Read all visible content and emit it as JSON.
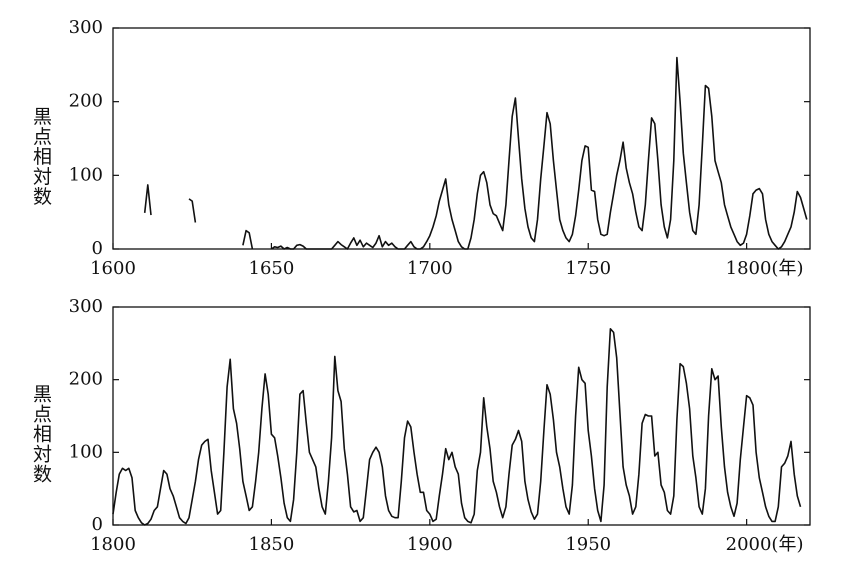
{
  "chart_data": [
    {
      "type": "line",
      "ylabel": "黒点相対数",
      "color": "#111111",
      "grid": false,
      "xlim": [
        1600,
        1820
      ],
      "ylim": [
        0,
        300
      ],
      "xticks": [
        1600,
        1650,
        1700,
        1750,
        {
          "value": 1800,
          "label": "1800(年)"
        }
      ],
      "yticks": [
        0,
        100,
        200,
        300
      ],
      "x": [
        1610,
        1611,
        1612,
        1613,
        1624,
        1625,
        1626,
        1627,
        1641,
        1642,
        1643,
        1644,
        1645,
        1650,
        1651,
        1652,
        1653,
        1654,
        1655,
        1656,
        1657,
        1658,
        1659,
        1660,
        1661,
        1662,
        1663,
        1664,
        1665,
        1666,
        1667,
        1668,
        1669,
        1670,
        1671,
        1672,
        1673,
        1674,
        1675,
        1676,
        1677,
        1678,
        1679,
        1680,
        1681,
        1682,
        1683,
        1684,
        1685,
        1686,
        1687,
        1688,
        1689,
        1690,
        1691,
        1692,
        1693,
        1694,
        1695,
        1696,
        1697,
        1698,
        1699,
        1700,
        1701,
        1702,
        1703,
        1704,
        1705,
        1706,
        1707,
        1708,
        1709,
        1710,
        1711,
        1712,
        1713,
        1714,
        1715,
        1716,
        1717,
        1718,
        1719,
        1720,
        1721,
        1722,
        1723,
        1724,
        1725,
        1726,
        1727,
        1728,
        1729,
        1730,
        1731,
        1732,
        1733,
        1734,
        1735,
        1736,
        1737,
        1738,
        1739,
        1740,
        1741,
        1742,
        1743,
        1744,
        1745,
        1746,
        1747,
        1748,
        1749,
        1750,
        1751,
        1752,
        1753,
        1754,
        1755,
        1756,
        1757,
        1758,
        1759,
        1760,
        1761,
        1762,
        1763,
        1764,
        1765,
        1766,
        1767,
        1768,
        1769,
        1770,
        1771,
        1772,
        1773,
        1774,
        1775,
        1776,
        1777,
        1778,
        1779,
        1780,
        1781,
        1782,
        1783,
        1784,
        1785,
        1786,
        1787,
        1788,
        1789,
        1790,
        1791,
        1792,
        1793,
        1794,
        1795,
        1796,
        1797,
        1798,
        1799,
        1800,
        1801,
        1802,
        1803,
        1804,
        1805,
        1806,
        1807,
        1808,
        1809,
        1810,
        1811,
        1812,
        1813,
        1814,
        1815,
        1816,
        1817,
        1818,
        1819
      ],
      "values": [
        49,
        87,
        46,
        null,
        68,
        65,
        36,
        null,
        5,
        25,
        22,
        0,
        null,
        0,
        3,
        2,
        4,
        0,
        2,
        0,
        0,
        5,
        6,
        4,
        0,
        0,
        0,
        0,
        0,
        0,
        0,
        0,
        0,
        5,
        10,
        6,
        3,
        0,
        8,
        15,
        5,
        12,
        3,
        8,
        5,
        2,
        8,
        18,
        3,
        10,
        5,
        8,
        3,
        0,
        0,
        0,
        5,
        10,
        3,
        0,
        0,
        3,
        10,
        18,
        30,
        45,
        65,
        80,
        95,
        60,
        40,
        25,
        10,
        3,
        0,
        0,
        15,
        40,
        75,
        100,
        105,
        90,
        60,
        48,
        45,
        35,
        25,
        60,
        120,
        180,
        205,
        150,
        95,
        55,
        30,
        15,
        10,
        40,
        95,
        140,
        185,
        170,
        120,
        80,
        40,
        25,
        15,
        10,
        20,
        45,
        80,
        120,
        140,
        138,
        80,
        78,
        40,
        20,
        18,
        20,
        50,
        75,
        100,
        120,
        145,
        110,
        90,
        75,
        50,
        30,
        25,
        60,
        120,
        178,
        170,
        120,
        60,
        30,
        15,
        40,
        120,
        260,
        200,
        130,
        90,
        50,
        25,
        20,
        60,
        140,
        222,
        218,
        180,
        120,
        105,
        90,
        60,
        45,
        30,
        20,
        10,
        5,
        8,
        20,
        45,
        75,
        80,
        82,
        75,
        40,
        20,
        10,
        5,
        0,
        3,
        10,
        20,
        30,
        50,
        78,
        70,
        55,
        40
      ]
    },
    {
      "type": "line",
      "ylabel": "黒点相対数",
      "color": "#111111",
      "grid": false,
      "xlim": [
        1800,
        2020
      ],
      "ylim": [
        0,
        300
      ],
      "xticks": [
        1800,
        1850,
        1900,
        1950,
        {
          "value": 2000,
          "label": "2000(年)"
        }
      ],
      "yticks": [
        0,
        100,
        200,
        300
      ],
      "x": [
        1800,
        1801,
        1802,
        1803,
        1804,
        1805,
        1806,
        1807,
        1808,
        1809,
        1810,
        1811,
        1812,
        1813,
        1814,
        1815,
        1816,
        1817,
        1818,
        1819,
        1820,
        1821,
        1822,
        1823,
        1824,
        1825,
        1826,
        1827,
        1828,
        1829,
        1830,
        1831,
        1832,
        1833,
        1834,
        1835,
        1836,
        1837,
        1838,
        1839,
        1840,
        1841,
        1842,
        1843,
        1844,
        1845,
        1846,
        1847,
        1848,
        1849,
        1850,
        1851,
        1852,
        1853,
        1854,
        1855,
        1856,
        1857,
        1858,
        1859,
        1860,
        1861,
        1862,
        1863,
        1864,
        1865,
        1866,
        1867,
        1868,
        1869,
        1870,
        1871,
        1872,
        1873,
        1874,
        1875,
        1876,
        1877,
        1878,
        1879,
        1880,
        1881,
        1882,
        1883,
        1884,
        1885,
        1886,
        1887,
        1888,
        1889,
        1890,
        1891,
        1892,
        1893,
        1894,
        1895,
        1896,
        1897,
        1898,
        1899,
        1900,
        1901,
        1902,
        1903,
        1904,
        1905,
        1906,
        1907,
        1908,
        1909,
        1910,
        1911,
        1912,
        1913,
        1914,
        1915,
        1916,
        1917,
        1918,
        1919,
        1920,
        1921,
        1922,
        1923,
        1924,
        1925,
        1926,
        1927,
        1928,
        1929,
        1930,
        1931,
        1932,
        1933,
        1934,
        1935,
        1936,
        1937,
        1938,
        1939,
        1940,
        1941,
        1942,
        1943,
        1944,
        1945,
        1946,
        1947,
        1948,
        1949,
        1950,
        1951,
        1952,
        1953,
        1954,
        1955,
        1956,
        1957,
        1958,
        1959,
        1960,
        1961,
        1962,
        1963,
        1964,
        1965,
        1966,
        1967,
        1968,
        1969,
        1970,
        1971,
        1972,
        1973,
        1974,
        1975,
        1976,
        1977,
        1978,
        1979,
        1980,
        1981,
        1982,
        1983,
        1984,
        1985,
        1986,
        1987,
        1988,
        1989,
        1990,
        1991,
        1992,
        1993,
        1994,
        1995,
        1996,
        1997,
        1998,
        1999,
        2000,
        2001,
        2002,
        2003,
        2004,
        2005,
        2006,
        2007,
        2008,
        2009,
        2010,
        2011,
        2012,
        2013,
        2014,
        2015,
        2016,
        2017
      ],
      "values": [
        15,
        45,
        70,
        78,
        75,
        78,
        65,
        20,
        10,
        3,
        0,
        2,
        8,
        20,
        25,
        50,
        75,
        70,
        50,
        40,
        25,
        10,
        5,
        2,
        10,
        35,
        60,
        90,
        110,
        115,
        118,
        75,
        45,
        15,
        20,
        100,
        190,
        228,
        160,
        140,
        105,
        60,
        40,
        20,
        25,
        60,
        100,
        160,
        208,
        180,
        125,
        120,
        95,
        65,
        30,
        10,
        5,
        35,
        100,
        180,
        185,
        140,
        100,
        90,
        80,
        50,
        25,
        15,
        60,
        120,
        232,
        185,
        170,
        105,
        70,
        25,
        18,
        20,
        5,
        10,
        50,
        90,
        100,
        107,
        100,
        80,
        40,
        20,
        12,
        10,
        10,
        60,
        120,
        143,
        135,
        100,
        70,
        45,
        45,
        20,
        15,
        5,
        8,
        40,
        70,
        105,
        90,
        100,
        80,
        70,
        30,
        10,
        5,
        3,
        15,
        75,
        100,
        175,
        135,
        105,
        60,
        45,
        25,
        10,
        25,
        70,
        110,
        118,
        130,
        115,
        60,
        35,
        18,
        8,
        15,
        60,
        130,
        193,
        180,
        145,
        100,
        80,
        50,
        25,
        15,
        55,
        150,
        217,
        200,
        195,
        130,
        95,
        50,
        20,
        5,
        55,
        190,
        270,
        265,
        230,
        155,
        80,
        55,
        40,
        15,
        25,
        70,
        140,
        152,
        150,
        150,
        95,
        100,
        55,
        45,
        20,
        15,
        40,
        145,
        222,
        218,
        195,
        160,
        95,
        65,
        25,
        15,
        50,
        150,
        215,
        200,
        205,
        135,
        80,
        45,
        25,
        12,
        30,
        90,
        135,
        178,
        175,
        165,
        100,
        65,
        45,
        25,
        12,
        5,
        5,
        25,
        80,
        85,
        95,
        115,
        70,
        40,
        25
      ]
    }
  ]
}
